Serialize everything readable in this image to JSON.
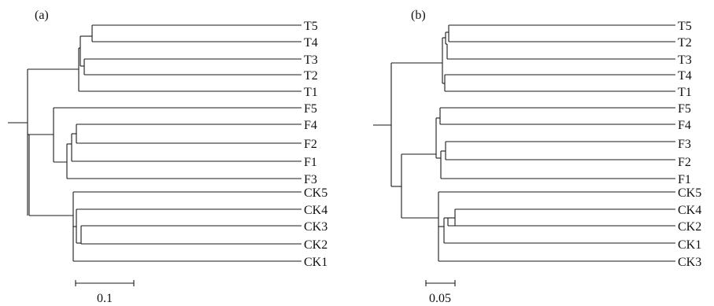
{
  "panels": [
    {
      "label": "(a)",
      "scale_bar": "0.1",
      "leaves": [
        "T5",
        "T4",
        "T3",
        "T2",
        "T1",
        "F5",
        "F4",
        "F2",
        "F1",
        "F3",
        "CK5",
        "CK4",
        "CK3",
        "CK2",
        "CK1"
      ]
    },
    {
      "label": "(b)",
      "scale_bar": "0.05",
      "leaves": [
        "T5",
        "T2",
        "T3",
        "T4",
        "T1",
        "F5",
        "F4",
        "F3",
        "F2",
        "F1",
        "CK5",
        "CK4",
        "CK2",
        "CK1",
        "CK3"
      ]
    }
  ]
}
